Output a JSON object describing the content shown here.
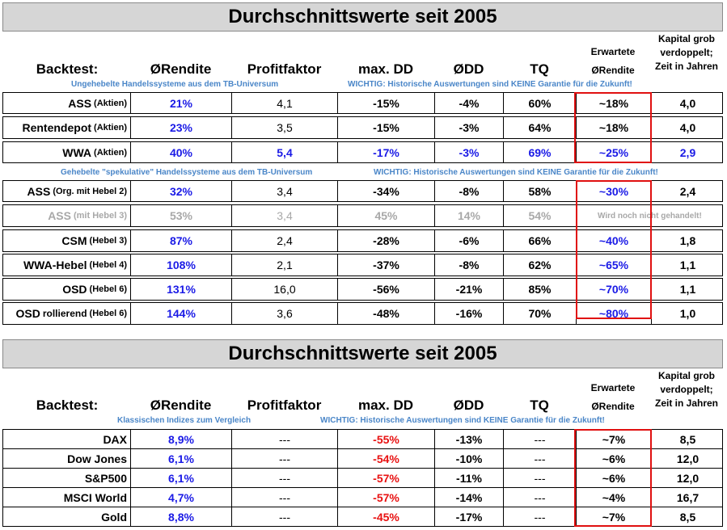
{
  "sections": [
    {
      "title": "Durchschnittswerte seit 2005",
      "headers": {
        "backtest": "Backtest:",
        "rendite": "ØRendite",
        "profitfaktor": "Profitfaktor",
        "maxdd": "max. DD",
        "odd": "ØDD",
        "tq": "TQ",
        "erwartete": "Erwartete",
        "erwartete2": "ØRendite",
        "kapital1": "Kapital grob",
        "kapital2": "verdoppelt;",
        "kapital3": "Zeit in Jahren"
      },
      "group1": {
        "note_left": "Ungehebelte Handelssysteme aus dem TB-Universum",
        "note_right": "WICHTIG: Historische Auswertungen sind KEINE Garantie für die Zukunft!",
        "rows": [
          {
            "name": "ASS",
            "suffix": "(Aktien)",
            "rendite": "21%",
            "pf": "4,1",
            "maxdd": "-15%",
            "odd": "-4%",
            "tq": "60%",
            "exp": "~18%",
            "kap": "4,0"
          },
          {
            "name": "Rentendepot",
            "suffix": "(Aktien)",
            "rendite": "23%",
            "pf": "3,5",
            "maxdd": "-15%",
            "odd": "-3%",
            "tq": "64%",
            "exp": "~18%",
            "kap": "4,0"
          },
          {
            "name": "WWA",
            "suffix": "(Aktien)",
            "rendite": "40%",
            "pf": "5,4",
            "maxdd": "-17%",
            "odd": "-3%",
            "tq": "69%",
            "exp": "~25%",
            "kap": "2,9"
          }
        ]
      },
      "group2": {
        "note_left": "Gehebelte \"spekulative\" Handelssysteme aus dem TB-Universum",
        "note_right": "WICHTIG: Historische Auswertungen sind KEINE Garantie für die Zukunft!",
        "rows": [
          {
            "name": "ASS",
            "suffix": "(Org. mit Hebel 2)",
            "rendite": "32%",
            "pf": "3,4",
            "maxdd": "-34%",
            "odd": "-8%",
            "tq": "58%",
            "exp": "~30%",
            "kap": "2,4"
          },
          {
            "name": "ASS",
            "suffix": "(mit Hebel 3)",
            "rendite": "53%",
            "pf": "3,4",
            "maxdd": "45%",
            "odd": "14%",
            "tq": "54%",
            "exp": "Wird noch nicht gehandelt!",
            "kap": ""
          },
          {
            "name": "CSM",
            "suffix": "(Hebel 3)",
            "rendite": "87%",
            "pf": "2,4",
            "maxdd": "-28%",
            "odd": "-6%",
            "tq": "66%",
            "exp": "~40%",
            "kap": "1,8"
          },
          {
            "name": "WWA-Hebel",
            "suffix": "(Hebel 4)",
            "rendite": "108%",
            "pf": "2,1",
            "maxdd": "-37%",
            "odd": "-8%",
            "tq": "62%",
            "exp": "~65%",
            "kap": "1,1"
          },
          {
            "name": "OSD",
            "suffix": "(Hebel 6)",
            "rendite": "131%",
            "pf": "16,0",
            "maxdd": "-56%",
            "odd": "-21%",
            "tq": "85%",
            "exp": "~70%",
            "kap": "1,1"
          },
          {
            "name": "OSD",
            "suffix": "(Hebel 6)",
            "name_extra": "rollierend",
            "rendite": "144%",
            "pf": "3,6",
            "maxdd": "-48%",
            "odd": "-16%",
            "tq": "70%",
            "exp": "~80%",
            "kap": "1,0"
          }
        ]
      }
    },
    {
      "title": "Durchschnittswerte seit 2005",
      "headers": {
        "backtest": "Backtest:",
        "rendite": "ØRendite",
        "profitfaktor": "Profitfaktor",
        "maxdd": "max. DD",
        "odd": "ØDD",
        "tq": "TQ",
        "erwartete": "Erwartete",
        "erwartete2": "ØRendite",
        "kapital1": "Kapital grob",
        "kapital2": "verdoppelt;",
        "kapital3": "Zeit in Jahren"
      },
      "group1": {
        "note_left": "Klassischen Indizes zum Vergleich",
        "note_right": "WICHTIG: Historische Auswertungen sind KEINE Garantie für die Zukunft!",
        "rows": [
          {
            "name": "DAX",
            "rendite": "8,9%",
            "pf": "---",
            "maxdd": "-55%",
            "odd": "-13%",
            "tq": "---",
            "exp": "~7%",
            "kap": "8,5"
          },
          {
            "name": "Dow Jones",
            "rendite": "6,1%",
            "pf": "---",
            "maxdd": "-54%",
            "odd": "-10%",
            "tq": "---",
            "exp": "~6%",
            "kap": "12,0"
          },
          {
            "name": "S&P500",
            "rendite": "6,1%",
            "pf": "---",
            "maxdd": "-57%",
            "odd": "-11%",
            "tq": "---",
            "exp": "~6%",
            "kap": "12,0"
          },
          {
            "name": "MSCI World",
            "rendite": "4,7%",
            "pf": "---",
            "maxdd": "-57%",
            "odd": "-14%",
            "tq": "---",
            "exp": "~4%",
            "kap": "16,7"
          },
          {
            "name": "Gold",
            "rendite": "8,8%",
            "pf": "---",
            "maxdd": "-45%",
            "odd": "-17%",
            "tq": "---",
            "exp": "~7%",
            "kap": "8,5"
          }
        ]
      }
    }
  ],
  "colors": {
    "accent_blue": "#1a1ae6",
    "note_blue": "#4a86c8",
    "red": "#e81010",
    "grey": "#a8a8a8",
    "title_bg": "#d6d6d6"
  }
}
